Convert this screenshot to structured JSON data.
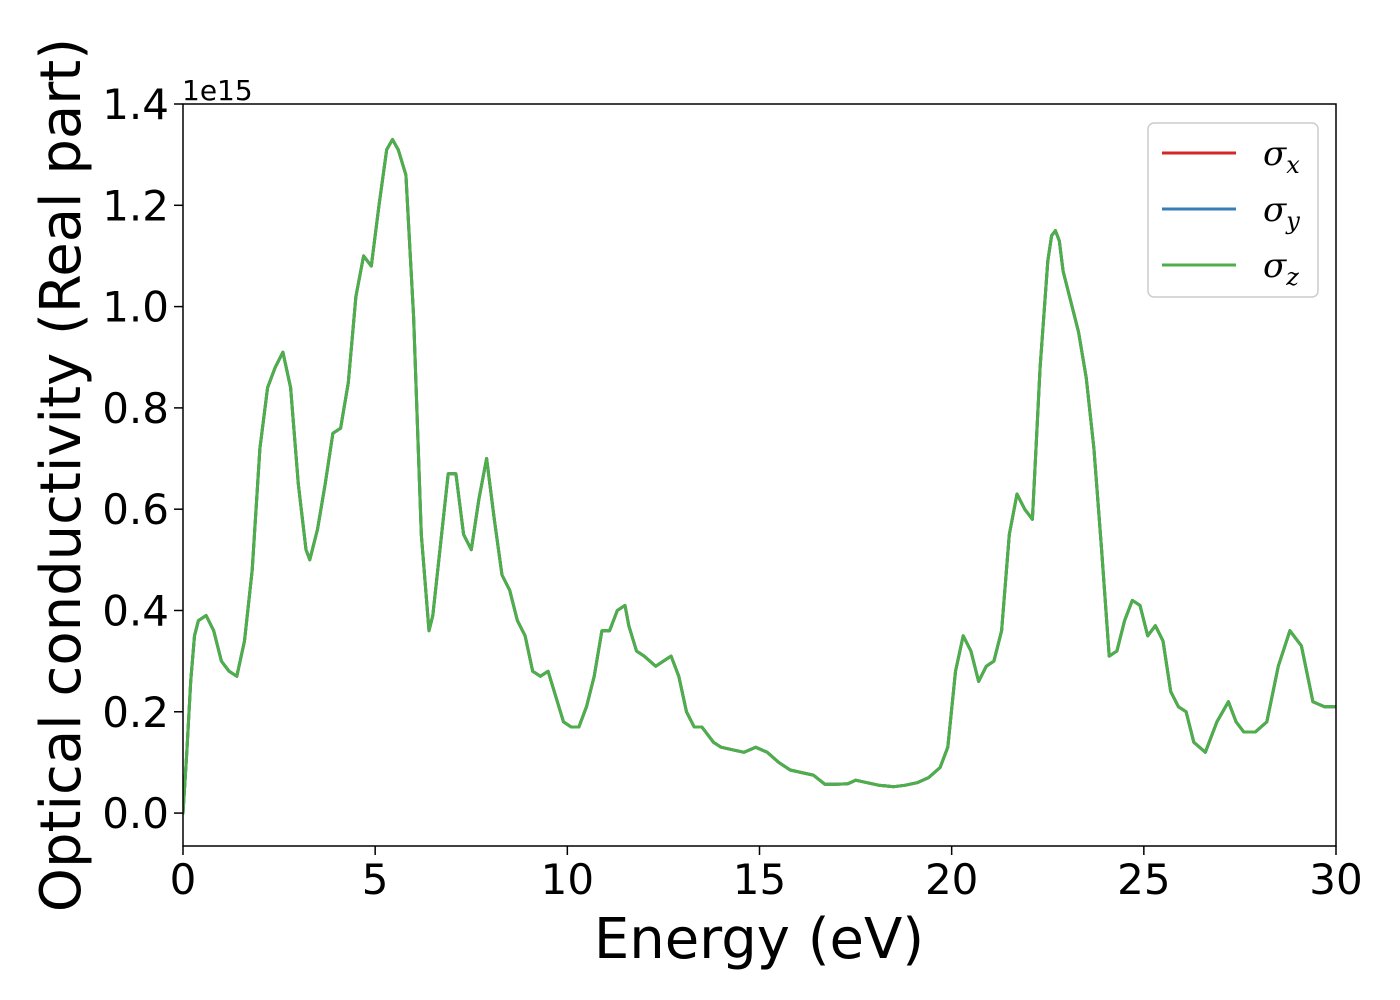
{
  "chart_data": {
    "type": "line",
    "xlabel": "Energy (eV)",
    "ylabel": "Optical conductivity (Real part)",
    "y_offset_label": "1e15",
    "xlim": [
      0,
      30
    ],
    "ylim": [
      -0.065,
      1.4
    ],
    "x_ticks": [
      0,
      5,
      10,
      15,
      20,
      25,
      30
    ],
    "y_ticks": [
      0.0,
      0.2,
      0.4,
      0.6,
      0.8,
      1.0,
      1.2,
      1.4
    ],
    "x_tick_labels": [
      "0",
      "5",
      "10",
      "15",
      "20",
      "25",
      "30"
    ],
    "y_tick_labels": [
      "0.0",
      "0.2",
      "0.4",
      "0.6",
      "0.8",
      "1.0",
      "1.2",
      "1.4"
    ],
    "grid": false,
    "legend_position": "top-right",
    "legend": [
      {
        "symbol": "σ",
        "subscript": "x",
        "color": "#d62728"
      },
      {
        "symbol": "σ",
        "subscript": "y",
        "color": "#377eb8"
      },
      {
        "symbol": "σ",
        "subscript": "z",
        "color": "#4daf4a"
      }
    ],
    "x": [
      0,
      0.1,
      0.2,
      0.3,
      0.4,
      0.6,
      0.8,
      1.0,
      1.2,
      1.4,
      1.6,
      1.8,
      2.0,
      2.2,
      2.4,
      2.6,
      2.8,
      3.0,
      3.2,
      3.3,
      3.5,
      3.7,
      3.9,
      4.1,
      4.3,
      4.5,
      4.7,
      4.9,
      5.1,
      5.3,
      5.45,
      5.6,
      5.8,
      6.0,
      6.2,
      6.4,
      6.5,
      6.7,
      6.9,
      7.1,
      7.3,
      7.5,
      7.7,
      7.9,
      8.1,
      8.3,
      8.5,
      8.7,
      8.9,
      9.1,
      9.3,
      9.5,
      9.7,
      9.9,
      10.1,
      10.3,
      10.5,
      10.7,
      10.9,
      11.1,
      11.3,
      11.5,
      11.6,
      11.8,
      12.0,
      12.3,
      12.5,
      12.7,
      12.9,
      13.1,
      13.3,
      13.5,
      13.8,
      14.0,
      14.3,
      14.6,
      14.9,
      15.2,
      15.5,
      15.8,
      16.1,
      16.4,
      16.7,
      17.0,
      17.3,
      17.5,
      17.8,
      18.1,
      18.5,
      18.8,
      19.1,
      19.4,
      19.7,
      19.9,
      20.1,
      20.3,
      20.5,
      20.7,
      20.9,
      21.1,
      21.3,
      21.5,
      21.7,
      21.9,
      22.1,
      22.3,
      22.5,
      22.6,
      22.7,
      22.8,
      22.9,
      23.1,
      23.3,
      23.5,
      23.7,
      23.9,
      24.1,
      24.3,
      24.5,
      24.7,
      24.9,
      25.1,
      25.3,
      25.5,
      25.7,
      25.9,
      26.1,
      26.3,
      26.6,
      26.9,
      27.2,
      27.4,
      27.6,
      27.9,
      28.2,
      28.5,
      28.8,
      29.1,
      29.4,
      29.7,
      30.0
    ],
    "series": [
      {
        "name": "σx",
        "color": "#d62728",
        "values": [
          0.0,
          0.12,
          0.26,
          0.35,
          0.38,
          0.39,
          0.36,
          0.3,
          0.28,
          0.27,
          0.34,
          0.48,
          0.72,
          0.84,
          0.88,
          0.91,
          0.84,
          0.65,
          0.52,
          0.5,
          0.56,
          0.65,
          0.75,
          0.76,
          0.85,
          1.02,
          1.1,
          1.08,
          1.2,
          1.31,
          1.33,
          1.31,
          1.26,
          0.98,
          0.55,
          0.36,
          0.39,
          0.53,
          0.67,
          0.67,
          0.55,
          0.52,
          0.62,
          0.7,
          0.58,
          0.47,
          0.44,
          0.38,
          0.35,
          0.28,
          0.27,
          0.28,
          0.23,
          0.18,
          0.17,
          0.17,
          0.21,
          0.27,
          0.36,
          0.36,
          0.4,
          0.41,
          0.37,
          0.32,
          0.31,
          0.29,
          0.3,
          0.31,
          0.27,
          0.2,
          0.17,
          0.17,
          0.14,
          0.13,
          0.125,
          0.12,
          0.13,
          0.12,
          0.1,
          0.085,
          0.08,
          0.075,
          0.057,
          0.057,
          0.058,
          0.065,
          0.06,
          0.055,
          0.052,
          0.055,
          0.06,
          0.07,
          0.09,
          0.13,
          0.28,
          0.35,
          0.32,
          0.26,
          0.29,
          0.3,
          0.36,
          0.55,
          0.63,
          0.6,
          0.58,
          0.88,
          1.09,
          1.14,
          1.15,
          1.13,
          1.07,
          1.01,
          0.95,
          0.86,
          0.72,
          0.52,
          0.31,
          0.32,
          0.38,
          0.42,
          0.41,
          0.35,
          0.37,
          0.34,
          0.24,
          0.21,
          0.2,
          0.14,
          0.12,
          0.18,
          0.22,
          0.18,
          0.16,
          0.16,
          0.18,
          0.29,
          0.36,
          0.33,
          0.22,
          0.21,
          0.21
        ]
      },
      {
        "name": "σy",
        "color": "#377eb8",
        "values": [
          0.0,
          0.12,
          0.26,
          0.35,
          0.38,
          0.39,
          0.36,
          0.3,
          0.28,
          0.27,
          0.34,
          0.48,
          0.72,
          0.84,
          0.88,
          0.91,
          0.84,
          0.65,
          0.52,
          0.5,
          0.56,
          0.65,
          0.75,
          0.76,
          0.85,
          1.02,
          1.1,
          1.08,
          1.2,
          1.31,
          1.33,
          1.31,
          1.26,
          0.98,
          0.55,
          0.36,
          0.39,
          0.53,
          0.67,
          0.67,
          0.55,
          0.52,
          0.62,
          0.7,
          0.58,
          0.47,
          0.44,
          0.38,
          0.35,
          0.28,
          0.27,
          0.28,
          0.23,
          0.18,
          0.17,
          0.17,
          0.21,
          0.27,
          0.36,
          0.36,
          0.4,
          0.41,
          0.37,
          0.32,
          0.31,
          0.29,
          0.3,
          0.31,
          0.27,
          0.2,
          0.17,
          0.17,
          0.14,
          0.13,
          0.125,
          0.12,
          0.13,
          0.12,
          0.1,
          0.085,
          0.08,
          0.075,
          0.057,
          0.057,
          0.058,
          0.065,
          0.06,
          0.055,
          0.052,
          0.055,
          0.06,
          0.07,
          0.09,
          0.13,
          0.28,
          0.35,
          0.32,
          0.26,
          0.29,
          0.3,
          0.36,
          0.55,
          0.63,
          0.6,
          0.58,
          0.88,
          1.09,
          1.14,
          1.15,
          1.13,
          1.07,
          1.01,
          0.95,
          0.86,
          0.72,
          0.52,
          0.31,
          0.32,
          0.38,
          0.42,
          0.41,
          0.35,
          0.37,
          0.34,
          0.24,
          0.21,
          0.2,
          0.14,
          0.12,
          0.18,
          0.22,
          0.18,
          0.16,
          0.16,
          0.18,
          0.29,
          0.36,
          0.33,
          0.22,
          0.21,
          0.21
        ]
      },
      {
        "name": "σz",
        "color": "#4daf4a",
        "values": [
          0.0,
          0.12,
          0.26,
          0.35,
          0.38,
          0.39,
          0.36,
          0.3,
          0.28,
          0.27,
          0.34,
          0.48,
          0.72,
          0.84,
          0.88,
          0.91,
          0.84,
          0.65,
          0.52,
          0.5,
          0.56,
          0.65,
          0.75,
          0.76,
          0.85,
          1.02,
          1.1,
          1.08,
          1.2,
          1.31,
          1.33,
          1.31,
          1.26,
          0.98,
          0.55,
          0.36,
          0.39,
          0.53,
          0.67,
          0.67,
          0.55,
          0.52,
          0.62,
          0.7,
          0.58,
          0.47,
          0.44,
          0.38,
          0.35,
          0.28,
          0.27,
          0.28,
          0.23,
          0.18,
          0.17,
          0.17,
          0.21,
          0.27,
          0.36,
          0.36,
          0.4,
          0.41,
          0.37,
          0.32,
          0.31,
          0.29,
          0.3,
          0.31,
          0.27,
          0.2,
          0.17,
          0.17,
          0.14,
          0.13,
          0.125,
          0.12,
          0.13,
          0.12,
          0.1,
          0.085,
          0.08,
          0.075,
          0.057,
          0.057,
          0.058,
          0.065,
          0.06,
          0.055,
          0.052,
          0.055,
          0.06,
          0.07,
          0.09,
          0.13,
          0.28,
          0.35,
          0.32,
          0.26,
          0.29,
          0.3,
          0.36,
          0.55,
          0.63,
          0.6,
          0.58,
          0.88,
          1.09,
          1.14,
          1.15,
          1.13,
          1.07,
          1.01,
          0.95,
          0.86,
          0.72,
          0.52,
          0.31,
          0.32,
          0.38,
          0.42,
          0.41,
          0.35,
          0.37,
          0.34,
          0.24,
          0.21,
          0.2,
          0.14,
          0.12,
          0.18,
          0.22,
          0.18,
          0.16,
          0.16,
          0.18,
          0.29,
          0.36,
          0.33,
          0.22,
          0.21,
          0.21
        ]
      }
    ]
  }
}
